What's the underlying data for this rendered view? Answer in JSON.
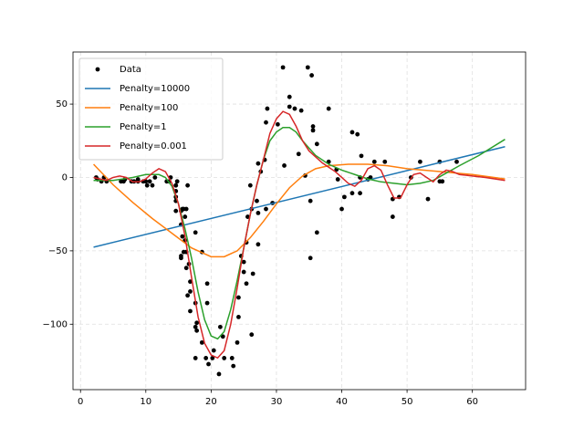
{
  "chart_data": {
    "type": "line",
    "xlim": [
      -1.15,
      68.15
    ],
    "ylim": [
      -144.6,
      85.5
    ],
    "xticks": [
      0,
      10,
      20,
      30,
      40,
      50,
      60
    ],
    "yticks": [
      {
        "value": -100,
        "label": "−100"
      },
      {
        "value": -50,
        "label": "−50"
      },
      0,
      50
    ],
    "grid": true,
    "legend": "upper left",
    "series": [
      {
        "name": "Data",
        "type": "scatter",
        "color": "#000000",
        "x": [
          2.4,
          2.6,
          3.2,
          3.6,
          4.0,
          6.2,
          6.6,
          6.8,
          7.8,
          8.2,
          8.8,
          8.8,
          9.6,
          10.0,
          10.2,
          10.6,
          11.0,
          11.4,
          13.2,
          13.6,
          13.8,
          14.6,
          14.6,
          14.6,
          14.6,
          14.6,
          14.6,
          14.8,
          15.4,
          15.4,
          15.4,
          15.4,
          15.6,
          15.6,
          15.8,
          15.8,
          16.0,
          16.0,
          16.2,
          16.2,
          16.2,
          16.4,
          16.4,
          16.6,
          16.8,
          16.8,
          16.8,
          17.6,
          17.6,
          17.6,
          17.6,
          17.8,
          17.8,
          18.6,
          18.6,
          19.2,
          19.4,
          19.4,
          19.6,
          20.2,
          20.4,
          21.2,
          21.4,
          21.8,
          22.0,
          23.2,
          23.4,
          24.0,
          24.2,
          24.2,
          24.6,
          25.0,
          25.0,
          25.4,
          25.4,
          25.6,
          26.0,
          26.2,
          26.2,
          26.4,
          27.0,
          27.2,
          27.2,
          27.2,
          27.6,
          28.2,
          28.4,
          28.4,
          28.6,
          29.4,
          30.2,
          31.0,
          31.2,
          32.0,
          32.0,
          32.8,
          33.4,
          33.8,
          34.4,
          34.8,
          35.2,
          35.2,
          35.4,
          35.6,
          35.6,
          36.2,
          36.2,
          38.0,
          38.0,
          39.2,
          39.4,
          40.0,
          40.4,
          41.6,
          41.6,
          42.4,
          42.8,
          42.8,
          43.0,
          44.0,
          44.4,
          45.0,
          46.6,
          47.8,
          47.8,
          48.8,
          50.6,
          52.0,
          53.2,
          55.0,
          55.0,
          55.4,
          57.6
        ],
        "values": [
          0.0,
          -1.3,
          -2.7,
          0.0,
          -2.7,
          -2.7,
          -2.7,
          -1.3,
          -2.7,
          -2.7,
          -1.3,
          -2.7,
          -2.7,
          -2.7,
          -5.4,
          -2.7,
          -5.4,
          0.0,
          -2.7,
          -2.7,
          0.0,
          -13.3,
          -5.4,
          -5.4,
          -9.3,
          -16.0,
          -22.8,
          -2.7,
          -22.8,
          -32.1,
          -53.5,
          -54.9,
          -40.2,
          -21.5,
          -21.5,
          -50.8,
          -42.9,
          -26.8,
          -21.5,
          -50.8,
          -61.7,
          -5.4,
          -80.4,
          -59.0,
          -71.0,
          -91.1,
          -77.7,
          -37.5,
          -85.6,
          -123.1,
          -101.9,
          -99.1,
          -104.4,
          -112.5,
          -50.8,
          -123.1,
          -85.6,
          -72.3,
          -127.2,
          -123.1,
          -117.9,
          -134.0,
          -101.9,
          -108.4,
          -123.1,
          -123.1,
          -128.5,
          -112.5,
          -95.1,
          -81.8,
          -53.5,
          -64.4,
          -57.6,
          -72.3,
          -44.3,
          -26.8,
          -5.4,
          -107.1,
          -21.5,
          -65.6,
          -16.0,
          -45.6,
          -24.2,
          9.5,
          4.0,
          12.0,
          -21.5,
          37.5,
          46.9,
          -17.4,
          36.2,
          75.0,
          8.1,
          54.9,
          48.2,
          46.9,
          16.0,
          45.6,
          1.3,
          75.0,
          -16.0,
          -54.9,
          69.6,
          34.8,
          32.1,
          -37.5,
          22.8,
          46.9,
          10.7,
          5.4,
          -1.3,
          -21.5,
          -13.3,
          30.8,
          -10.7,
          29.4,
          0.0,
          -10.7,
          14.7,
          -1.3,
          0.0,
          10.7,
          10.7,
          -26.8,
          -14.7,
          -13.3,
          0.0,
          10.7,
          -14.7,
          -2.7,
          10.7,
          -2.7,
          10.7
        ]
      },
      {
        "name": "Penalty=10000",
        "type": "line",
        "color": "#1f77b4",
        "x": [
          2,
          65
        ],
        "values": [
          -47.5,
          21
        ]
      },
      {
        "name": "Penalty=100",
        "type": "line",
        "color": "#ff7f0e",
        "x": [
          2,
          5,
          8,
          11,
          14,
          17,
          20,
          22,
          24,
          26,
          28,
          30,
          32,
          34,
          36,
          38,
          41,
          44,
          47,
          50,
          55,
          60,
          65
        ],
        "values": [
          9,
          -5,
          -17,
          -28,
          -38,
          -48,
          -54,
          -54,
          -50,
          -41,
          -30,
          -18,
          -7,
          1,
          6,
          8,
          9,
          9,
          8,
          6,
          4,
          2,
          -1
        ]
      },
      {
        "name": "Penalty=1",
        "type": "line",
        "color": "#2ca02c",
        "x": [
          2,
          5,
          8,
          10,
          12,
          13,
          14,
          15,
          16,
          17,
          18,
          19,
          20,
          21,
          22,
          23,
          24,
          25,
          26,
          27,
          28,
          29,
          30,
          31,
          32,
          33,
          34,
          35,
          36,
          38,
          40,
          42,
          44,
          46,
          48,
          50,
          52,
          54,
          56,
          58,
          61,
          65
        ],
        "values": [
          -2,
          -2,
          0,
          2,
          2,
          0,
          -6,
          -18,
          -35,
          -55,
          -78,
          -97,
          -108,
          -110,
          -105,
          -90,
          -70,
          -48,
          -25,
          -5,
          12,
          25,
          31,
          34,
          34,
          31,
          25,
          20,
          15,
          9,
          5,
          2,
          -1,
          -3,
          -4,
          -5,
          -4,
          -2,
          3,
          8,
          15,
          26
        ]
      },
      {
        "name": "Penalty=0.001",
        "type": "line",
        "color": "#d62728",
        "x": [
          2,
          3,
          4,
          5,
          6,
          7,
          8,
          9,
          10,
          11,
          12,
          13,
          14,
          15,
          16,
          17,
          18,
          19,
          20,
          21,
          22,
          23,
          24,
          25,
          26,
          27,
          28,
          29,
          30,
          31,
          32,
          33,
          34,
          35,
          36,
          37,
          38,
          39,
          40,
          41,
          42,
          43,
          44,
          45,
          46,
          47,
          48,
          49,
          50,
          51,
          52,
          53,
          54,
          55,
          56,
          57,
          58,
          60,
          62,
          65
        ],
        "values": [
          0,
          -1,
          -2,
          0,
          1,
          0,
          -3,
          -3,
          -1,
          3,
          6,
          4,
          -4,
          -18,
          -40,
          -68,
          -95,
          -113,
          -121,
          -123,
          -118,
          -100,
          -75,
          -48,
          -25,
          -5,
          12,
          30,
          40,
          45,
          43,
          35,
          25,
          18,
          14,
          10,
          7,
          4,
          0,
          -4,
          -6,
          -2,
          6,
          8,
          5,
          -5,
          -14,
          -14,
          -5,
          2,
          3,
          0,
          -3,
          2,
          5,
          4,
          2,
          1,
          0,
          -2
        ]
      }
    ]
  }
}
